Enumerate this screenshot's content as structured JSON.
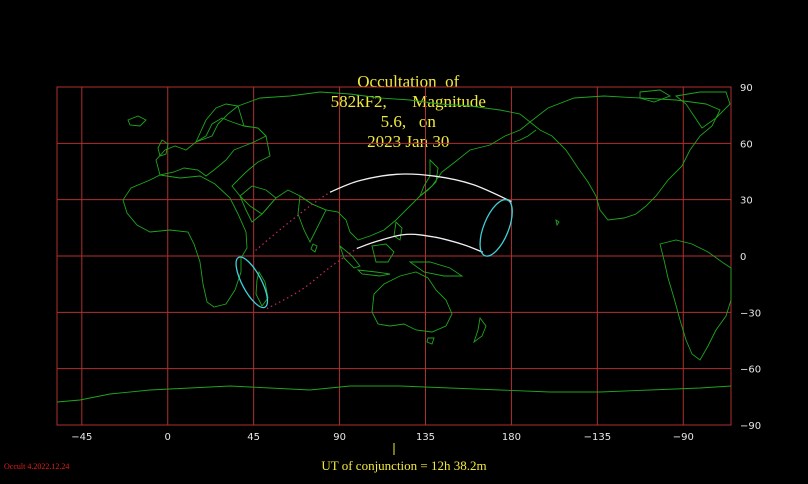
{
  "title": {
    "object": "582kF2",
    "magnitude": "5.6",
    "date": "2023 Jan 30",
    "prefix": "Occultation  of",
    "mag_prefix": "Magnitude",
    "date_prefix": "on"
  },
  "axes": {
    "longitude_ticks": [
      {
        "value": -45,
        "label": "−45"
      },
      {
        "value": 0,
        "label": "0"
      },
      {
        "value": 45,
        "label": "45"
      },
      {
        "value": 90,
        "label": "90"
      },
      {
        "value": 135,
        "label": "135"
      },
      {
        "value": 180,
        "label": "180"
      },
      {
        "value": 225,
        "label": "−135"
      },
      {
        "value": 270,
        "label": "−90"
      }
    ],
    "latitude_ticks": [
      {
        "value": 90,
        "label": "90"
      },
      {
        "value": 60,
        "label": "60"
      },
      {
        "value": 30,
        "label": "30"
      },
      {
        "value": 0,
        "label": "0"
      },
      {
        "value": -30,
        "label": "−30"
      },
      {
        "value": -60,
        "label": "−60"
      },
      {
        "value": -90,
        "label": "−90"
      }
    ],
    "lon_range": [
      -58,
      295
    ],
    "lat_range": [
      -90,
      90
    ]
  },
  "colors": {
    "grid": "#b03030",
    "coast": "#1fa51f",
    "path": "#f0f0f0",
    "rise_set": "#3fd0d8",
    "dotted": "#c02a6a",
    "title": "#f2ea3c"
  },
  "paths": {
    "north_limit": [
      [
        85,
        34
      ],
      [
        100,
        40
      ],
      [
        120,
        43.5
      ],
      [
        140,
        42.5
      ],
      [
        160,
        38
      ],
      [
        180,
        29
      ]
    ],
    "south_limit": [
      [
        99,
        4
      ],
      [
        110,
        8
      ],
      [
        125,
        11.5
      ],
      [
        140,
        10
      ],
      [
        155,
        6
      ],
      [
        165,
        2
      ]
    ],
    "dotted_north": [
      [
        46,
        3
      ],
      [
        60,
        15
      ],
      [
        75,
        27
      ],
      [
        85,
        34
      ]
    ],
    "dotted_south": [
      [
        52,
        -28
      ],
      [
        70,
        -18
      ],
      [
        85,
        -6
      ],
      [
        99,
        4
      ]
    ],
    "east_ellipse": {
      "center": [
        172,
        15
      ],
      "semi_axes": [
        6.5,
        16
      ],
      "tilt_deg": 22
    },
    "west_ellipse": {
      "center": [
        44,
        -14
      ],
      "semi_axes": [
        5,
        15
      ],
      "tilt_deg": -28
    }
  },
  "footer": "UT of conjunction = 12h 38.2m",
  "version": "Occult 4.2022.12.24"
}
